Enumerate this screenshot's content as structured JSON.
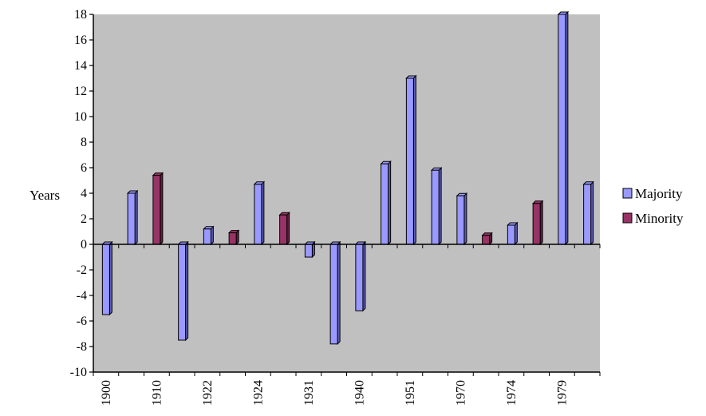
{
  "chart_data": {
    "type": "bar",
    "ylabel": "Years",
    "ylim": [
      -10,
      18
    ],
    "y_ticks": [
      "18",
      "16",
      "14",
      "12",
      "10",
      "8",
      "6",
      "4",
      "2",
      "0",
      "-2",
      "-4",
      "-6",
      "-8",
      "-10"
    ],
    "x_tick_labels": [
      "1900",
      "1910",
      "1922",
      "1924",
      "1931",
      "1940",
      "1951",
      "1970",
      "1974",
      "1979"
    ],
    "plot_background": "#c0c0c0",
    "bars": [
      {
        "series": "Majority",
        "value": -5.5
      },
      {
        "series": "Majority",
        "value": 4.0
      },
      {
        "series": "Minority",
        "value": 5.4
      },
      {
        "series": "Majority",
        "value": -7.5
      },
      {
        "series": "Majority",
        "value": 1.2
      },
      {
        "series": "Minority",
        "value": 0.9
      },
      {
        "series": "Majority",
        "value": 4.7
      },
      {
        "series": "Minority",
        "value": 2.3
      },
      {
        "series": "Majority",
        "value": -1.0
      },
      {
        "series": "Majority",
        "value": -7.8
      },
      {
        "series": "Majority",
        "value": -5.2
      },
      {
        "series": "Majority",
        "value": 6.3
      },
      {
        "series": "Majority",
        "value": 13.0
      },
      {
        "series": "Majority",
        "value": 5.8
      },
      {
        "series": "Majority",
        "value": 3.8
      },
      {
        "series": "Minority",
        "value": 0.7
      },
      {
        "series": "Majority",
        "value": 1.5
      },
      {
        "series": "Minority",
        "value": 3.2
      },
      {
        "series": "Majority",
        "value": 18.0
      },
      {
        "series": "Majority",
        "value": 4.7
      }
    ],
    "series": [
      {
        "name": "Majority",
        "color": "#9999ff",
        "side_color": "#5c5cb8"
      },
      {
        "name": "Minority",
        "color": "#993366",
        "side_color": "#5e1f3f"
      }
    ],
    "legend": "right",
    "grid": false
  }
}
